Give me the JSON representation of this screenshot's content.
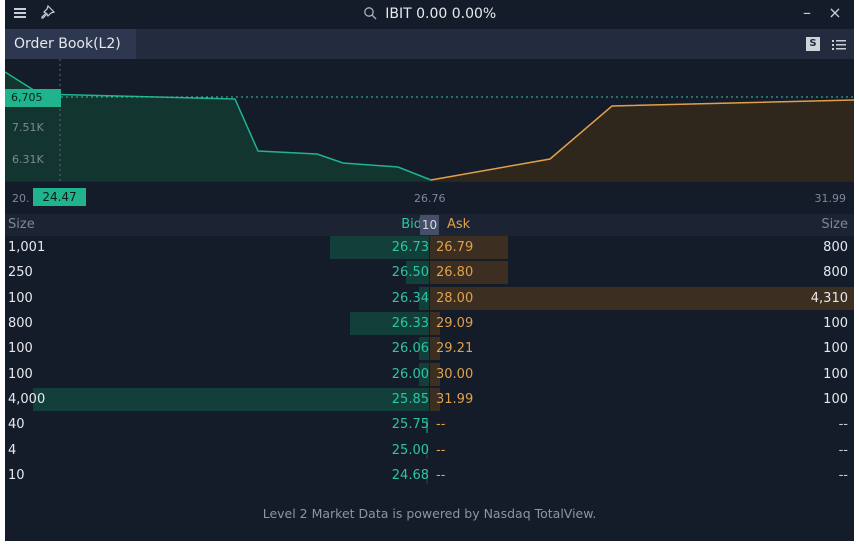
{
  "title": {
    "symbol": "IBIT",
    "quote": "0.00 0.00%"
  },
  "icons": [
    "menu-icon",
    "pin-icon",
    "search-icon",
    "minimize-icon",
    "close-icon",
    "s-badge-icon",
    "list-icon"
  ],
  "tabs": [
    {
      "label": "Order Book(L2)",
      "active": true
    }
  ],
  "tab_badge": "S",
  "window": {
    "minimize": "–",
    "close": "×"
  },
  "depth_chart": {
    "marker_label": "6,705",
    "y_labels": [
      "7.51K",
      "6.31K"
    ],
    "x_labels": [
      "20.",
      "26.76",
      "31.99"
    ],
    "x_pill": "24.47",
    "colors": {
      "bid": "#1fb48e",
      "ask": "#e0a14b"
    }
  },
  "header": {
    "size_left": "Size",
    "bid": "Bid",
    "depth": "10",
    "ask": "Ask",
    "size_right": "Size"
  },
  "rows": [
    {
      "bid_size": "1,001",
      "bid_price": "26.73",
      "ask_price": "26.79",
      "ask_size": "800"
    },
    {
      "bid_size": "250",
      "bid_price": "26.50",
      "ask_price": "26.80",
      "ask_size": "800"
    },
    {
      "bid_size": "100",
      "bid_price": "26.34",
      "ask_price": "28.00",
      "ask_size": "4,310"
    },
    {
      "bid_size": "800",
      "bid_price": "26.33",
      "ask_price": "29.09",
      "ask_size": "100"
    },
    {
      "bid_size": "100",
      "bid_price": "26.06",
      "ask_price": "29.21",
      "ask_size": "100"
    },
    {
      "bid_size": "100",
      "bid_price": "26.00",
      "ask_price": "30.00",
      "ask_size": "100"
    },
    {
      "bid_size": "4,000",
      "bid_price": "25.85",
      "ask_price": "31.99",
      "ask_size": "100"
    },
    {
      "bid_size": "40",
      "bid_price": "25.75",
      "ask_price": "--",
      "ask_size": "--"
    },
    {
      "bid_size": "4",
      "bid_price": "25.00",
      "ask_price": "--",
      "ask_size": "--"
    },
    {
      "bid_size": "10",
      "bid_price": "24.68",
      "ask_price": "--",
      "ask_size": "--"
    }
  ],
  "footer": "Level 2 Market Data is powered by Nasdaq TotalView."
}
